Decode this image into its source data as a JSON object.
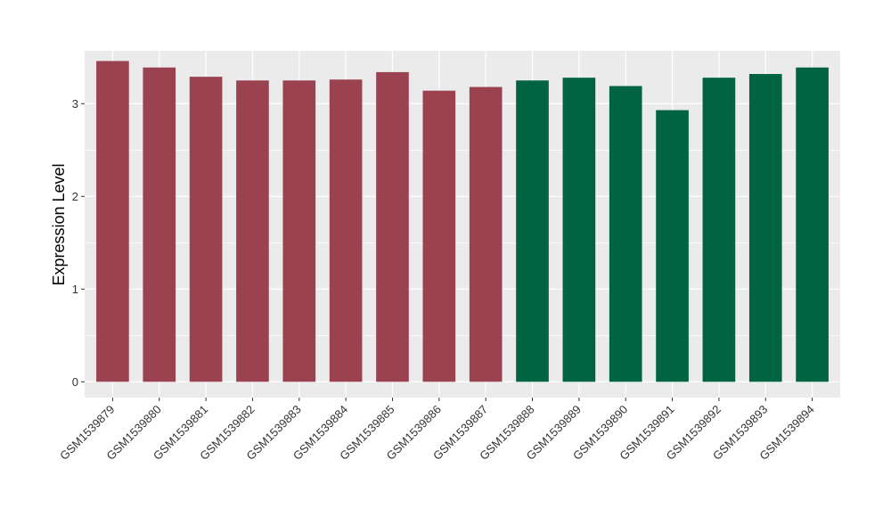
{
  "chart_data": {
    "type": "bar",
    "categories": [
      "GSM1539879",
      "GSM1539880",
      "GSM1539881",
      "GSM1539882",
      "GSM1539883",
      "GSM1539884",
      "GSM1539885",
      "GSM1539886",
      "GSM1539887",
      "GSM1539888",
      "GSM1539889",
      "GSM1539890",
      "GSM1539891",
      "GSM1539892",
      "GSM1539893",
      "GSM1539894"
    ],
    "values": [
      3.46,
      3.39,
      3.29,
      3.25,
      3.25,
      3.26,
      3.34,
      3.14,
      3.18,
      3.25,
      3.28,
      3.19,
      2.93,
      3.28,
      3.32,
      3.39
    ],
    "bar_colors": [
      "#9B4251",
      "#9B4251",
      "#9B4251",
      "#9B4251",
      "#9B4251",
      "#9B4251",
      "#9B4251",
      "#9B4251",
      "#9B4251",
      "#006341",
      "#006341",
      "#006341",
      "#006341",
      "#006341",
      "#006341",
      "#006341"
    ],
    "title": "",
    "xlabel": "",
    "ylabel": "Expression Level",
    "ylim": [
      -0.17,
      3.57
    ],
    "yticks": [
      0,
      1,
      2,
      3
    ],
    "grid": true,
    "legend": "none",
    "colors": {
      "panel": "#EBEBEB",
      "grid": "#FFFFFF",
      "axis_text": "#333333"
    }
  }
}
